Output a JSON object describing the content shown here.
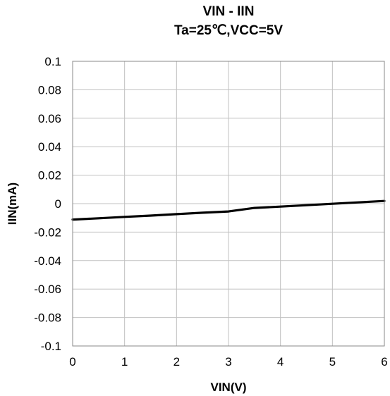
{
  "chart_data": {
    "type": "line",
    "title": "VIN - IIN",
    "subtitle": "Ta=25℃,VCC=5V",
    "xlabel": "VIN(V)",
    "ylabel": "IIN(mA)",
    "xlim": [
      0,
      6
    ],
    "ylim": [
      -0.1,
      0.1
    ],
    "x_ticks": [
      0,
      1,
      2,
      3,
      4,
      5,
      6
    ],
    "y_ticks": [
      0.1,
      0.08,
      0.06,
      0.04,
      0.02,
      0,
      -0.02,
      -0.04,
      -0.06,
      -0.08,
      -0.1
    ],
    "grid": true,
    "series": [
      {
        "x": [
          0,
          0.5,
          1,
          1.5,
          2,
          2.5,
          3,
          3.5,
          4,
          4.5,
          5,
          5.5,
          6
        ],
        "y": [
          -0.0112,
          -0.0103,
          -0.0093,
          -0.0084,
          -0.0074,
          -0.0064,
          -0.0055,
          -0.003,
          -0.0021,
          -0.0011,
          -0.0001,
          0.0009,
          0.0019
        ],
        "color": "#000000"
      }
    ]
  }
}
